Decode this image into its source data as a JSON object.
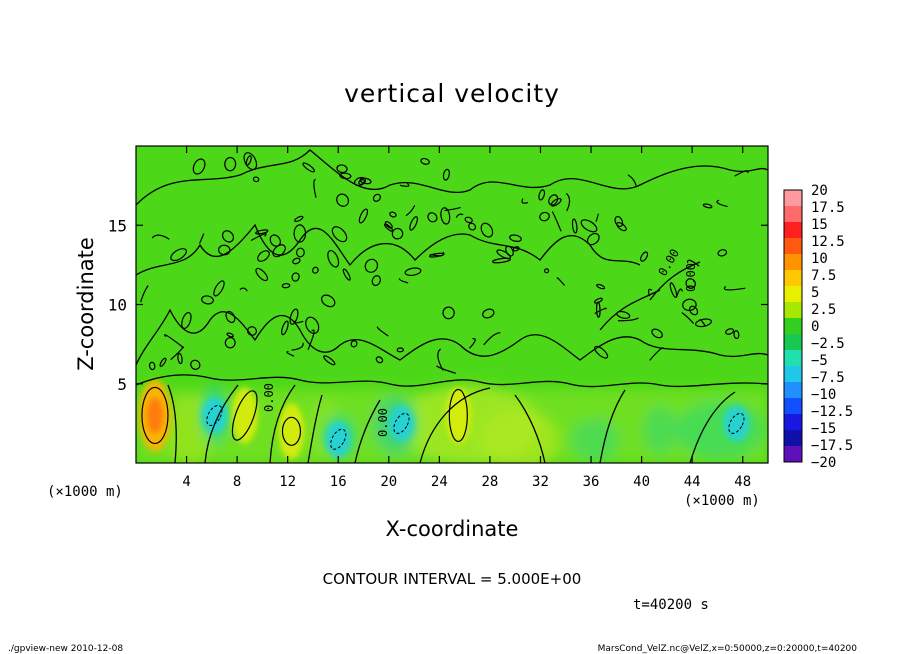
{
  "chart_data": {
    "type": "heatmap",
    "title": "vertical velocity",
    "xlabel": "X-coordinate",
    "ylabel": "Z-coordinate",
    "x_unit": "(×1000 m)",
    "y_unit": "(×1000 m)",
    "xlim": [
      0,
      50
    ],
    "ylim": [
      0,
      20
    ],
    "x_ticks": [
      4,
      8,
      12,
      16,
      20,
      24,
      28,
      32,
      36,
      40,
      44,
      48
    ],
    "y_ticks": [
      5,
      10,
      15
    ],
    "contour_label_value": "0.00",
    "contour_interval_text": "CONTOUR INTERVAL = 5.000E+00",
    "time_text": "t=40200 s",
    "colorbar": {
      "levels": [
        20,
        17.5,
        15,
        12.5,
        10,
        7.5,
        5,
        2.5,
        0,
        -2.5,
        -5,
        -7.5,
        -10,
        -12.5,
        -15,
        -17.5,
        -20
      ],
      "colors": [
        "#ff9aa0",
        "#ff6a6a",
        "#ff2020",
        "#ff5a10",
        "#ff9400",
        "#ffc800",
        "#e8f000",
        "#a8e800",
        "#34d020",
        "#18c850",
        "#20e0b0",
        "#20c8e8",
        "#2090ff",
        "#1050ff",
        "#1818e0",
        "#1010a8",
        "#6010b8"
      ]
    },
    "features": [
      {
        "type": "updraft",
        "x": 1.5,
        "z": 3.0,
        "value": 10
      },
      {
        "type": "updraft",
        "x": 8.6,
        "z": 3.0,
        "value": 5
      },
      {
        "type": "updraft",
        "x": 12.3,
        "z": 2.0,
        "value": 5
      },
      {
        "type": "updraft",
        "x": 25.5,
        "z": 3.0,
        "value": 5
      },
      {
        "type": "downdraft",
        "x": 6.2,
        "z": 3.0,
        "value": -5
      },
      {
        "type": "downdraft",
        "x": 16.0,
        "z": 1.5,
        "value": -5
      },
      {
        "type": "downdraft",
        "x": 21.0,
        "z": 2.5,
        "value": -5
      },
      {
        "type": "downdraft",
        "x": 47.5,
        "z": 2.5,
        "value": -5
      }
    ]
  },
  "footer": {
    "left": "./gpview-new  2010-12-08",
    "right": "MarsCond_VelZ.nc@VelZ,x=0:50000,z=0:20000,t=40200"
  }
}
